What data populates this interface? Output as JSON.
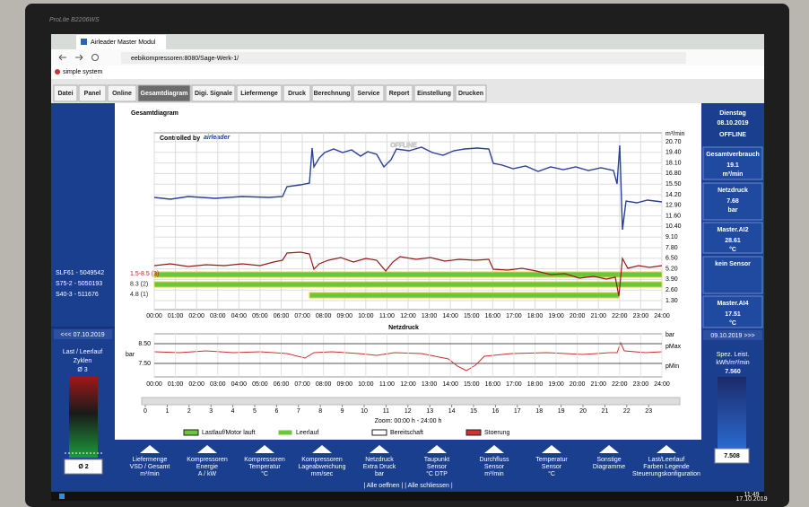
{
  "monitor": {
    "brand": "ProLite B2206WS"
  },
  "browser": {
    "tab": "Airleader Master Modul",
    "url": "eebikompressoren:8080/Sage-Werk-1/",
    "bookmark": "simple system"
  },
  "menu": [
    "Datei",
    "Panel",
    "Online",
    "Gesamtdiagram",
    "Digi. Signale",
    "Liefermenge",
    "Druck",
    "Berechnung",
    "Service",
    "Report",
    "Einstellung",
    "Drucken"
  ],
  "left_panel": {
    "compressors": [
      "SLF61 - 5049542",
      "S75-2 - 5050193",
      "S40-3 - 511676"
    ],
    "prev_date": "<<< 07.10.2019",
    "cycles": [
      "Last / Leerlauf",
      "Zyklen",
      "Ø 3"
    ],
    "gauge_value": "Ø 2"
  },
  "diagram": {
    "title": "Gesamtdiagram",
    "controlled_by": "Controlled by",
    "brand": "airleader",
    "watermark": "OFFLINE",
    "y_unit": "m³/min",
    "yticks": [
      "20.70",
      "19.40",
      "18.10",
      "16.80",
      "15.50",
      "14.20",
      "12.90",
      "11.60",
      "10.40",
      "9.10",
      "7.80",
      "6.50",
      "5.20",
      "3.90",
      "2.60",
      "1.30"
    ],
    "level_labels": [
      "1.5-8.5 (3)",
      "8.3 (2)",
      "4.8 (1)"
    ],
    "xticks": [
      "00:00",
      "01:00",
      "02:00",
      "03:00",
      "04:00",
      "05:00",
      "06:00",
      "07:00",
      "08:00",
      "09:00",
      "10:00",
      "11:00",
      "12:00",
      "13:00",
      "14:00",
      "15:00",
      "16:00",
      "17:00",
      "18:00",
      "19:00",
      "20:00",
      "21:00",
      "22:00",
      "23:00",
      "24:00"
    ]
  },
  "pressure": {
    "title": "Netzdruck",
    "y_unit": "bar",
    "yticks": [
      "8.50",
      "7.50"
    ],
    "right_unit": "bar",
    "p_max": "pMax",
    "p_min": "pMin"
  },
  "slider": {
    "hours": [
      0,
      1,
      2,
      3,
      4,
      5,
      6,
      7,
      8,
      9,
      10,
      11,
      12,
      13,
      14,
      15,
      16,
      17,
      18,
      19,
      20,
      21,
      22,
      23
    ],
    "zoom": "Zoom: 00:00 h - 24:00 h"
  },
  "legend": [
    "Lastlauf/Motor lauft",
    "Leerlauf",
    "Bereitschaft",
    "Stoerung"
  ],
  "right_panel": {
    "day": "Dienstag",
    "date": "08.10.2019",
    "status": "OFFLINE",
    "cards": [
      {
        "label": "Gesamtverbrauch",
        "value": "19.1",
        "unit": "m³/min"
      },
      {
        "label": "Netzdruck",
        "value": "7.68",
        "unit": "bar"
      },
      {
        "label": "Master.AI2",
        "value": "28.61",
        "unit": "°C"
      },
      {
        "label": "kein Sensor"
      },
      {
        "label": "Master.AI4",
        "value": "17.51",
        "unit": "°C"
      }
    ],
    "next_date": "09.10.2019 >>>",
    "spec": {
      "label": [
        "Spez. Leist.",
        "kWh/m³/min"
      ],
      "value": "7.560"
    },
    "gauge_value": "7.508"
  },
  "buttons": [
    [
      "Liefermenge",
      "VSD / Gesamt",
      "m³/min"
    ],
    [
      "Kompressoren",
      "Energie",
      "A / kW"
    ],
    [
      "Kompressoren",
      "Temperatur",
      "°C"
    ],
    [
      "Kompressoren",
      "Lageabweichung",
      "mm/sec"
    ],
    [
      "Netzdruck",
      "Extra Druck",
      "bar"
    ],
    [
      "Taupunkt",
      "Sensor",
      "°C DTP"
    ],
    [
      "Durchfluss",
      "Sensor",
      "m³/min"
    ],
    [
      "Temperatur",
      "Sensor",
      "°C"
    ],
    [
      "Sonstige",
      "Diagramme"
    ],
    [
      "Last/Leerlauf",
      "Farben Legende",
      "Steuerungskonfiguration"
    ]
  ],
  "footer": "| Alle oeffnen | | Alle schliessen |",
  "taskbar": {
    "time": "11:49",
    "date": "17.10.2019"
  }
}
